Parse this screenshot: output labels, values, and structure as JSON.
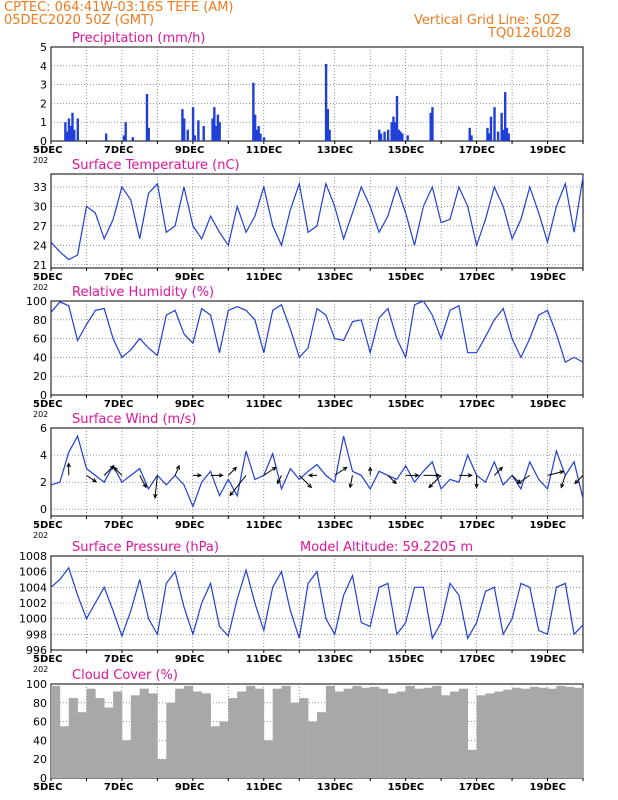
{
  "header": {
    "line1": "CPTEC:   064:41W-03:16S   TEFE (AM)",
    "line2": "05DEC2020 50Z (GMT)",
    "right1": "Vertical Grid Line: 50Z",
    "right2": "TQ0126L028",
    "color": "#ee7a1e"
  },
  "colors": {
    "title": "#e0149c",
    "line": "#1f3fd8",
    "bar": "#1f3fd8",
    "cloud": "#a8a8a8",
    "arrow": "#000000"
  },
  "date_ticks": [
    "5DEC",
    "7DEC",
    "9DEC",
    "11DEC",
    "13DEC",
    "15DEC",
    "17DEC",
    "19DEC"
  ],
  "year_stub": "202",
  "chart_data": [
    {
      "id": "precip",
      "type": "bar",
      "title": "Precipitation (mm/h)",
      "ylim": [
        0,
        5
      ],
      "yticks": [
        0,
        1,
        2,
        3,
        4,
        5
      ],
      "x": [
        5.4,
        5.45,
        5.5,
        5.55,
        5.6,
        5.65,
        5.75,
        6.55,
        7.05,
        7.1,
        7.3,
        7.7,
        7.75,
        8.7,
        8.75,
        8.85,
        9.0,
        9.05,
        9.15,
        9.3,
        9.55,
        9.6,
        9.65,
        9.7,
        9.75,
        10.7,
        10.75,
        10.8,
        10.85,
        10.9,
        11.0,
        12.75,
        12.8,
        12.85,
        14.25,
        14.3,
        14.4,
        14.5,
        14.6,
        14.65,
        14.7,
        14.75,
        14.8,
        14.85,
        14.9,
        15.05,
        15.7,
        15.75,
        16.8,
        16.85,
        17.3,
        17.35,
        17.4,
        17.5,
        17.6,
        17.7,
        17.75,
        17.8,
        17.85,
        17.9
      ],
      "values": [
        1.0,
        0.5,
        1.2,
        0.8,
        1.5,
        0.6,
        1.2,
        0.4,
        0.3,
        1.0,
        0.2,
        2.5,
        0.7,
        1.7,
        1.2,
        0.6,
        1.8,
        0.3,
        1.1,
        0.8,
        1.2,
        1.8,
        0.8,
        1.4,
        1.0,
        3.1,
        1.4,
        0.6,
        0.8,
        0.4,
        0.2,
        4.1,
        1.7,
        0.6,
        0.6,
        0.4,
        0.5,
        0.6,
        1.0,
        1.3,
        1.0,
        2.4,
        0.6,
        0.5,
        0.4,
        0.3,
        1.5,
        1.8,
        0.7,
        0.3,
        0.7,
        0.4,
        1.3,
        1.8,
        0.5,
        1.5,
        0.6,
        2.6,
        0.7,
        0.4
      ]
    },
    {
      "id": "temp",
      "type": "line",
      "title": "Surface Temperature (nC)",
      "ylim": [
        20.5,
        35
      ],
      "yticks": [
        21,
        24,
        27,
        30,
        33
      ],
      "x": [
        5.0,
        5.25,
        5.5,
        5.75,
        6.0,
        6.25,
        6.5,
        6.75,
        7.0,
        7.25,
        7.5,
        7.75,
        8.0,
        8.25,
        8.5,
        8.75,
        9.0,
        9.25,
        9.5,
        9.75,
        10.0,
        10.25,
        10.5,
        10.75,
        11.0,
        11.25,
        11.5,
        11.75,
        12.0,
        12.25,
        12.5,
        12.75,
        13.0,
        13.25,
        13.5,
        13.75,
        14.0,
        14.25,
        14.5,
        14.75,
        15.0,
        15.25,
        15.5,
        15.75,
        16.0,
        16.25,
        16.5,
        16.75,
        17.0,
        17.25,
        17.5,
        17.75,
        18.0,
        18.25,
        18.5,
        18.75,
        19.0,
        19.25,
        19.5,
        19.75,
        20.0
      ],
      "y": [
        24.5,
        23.0,
        21.8,
        22.5,
        30.0,
        29.0,
        25.0,
        28.0,
        33.0,
        31.0,
        25.0,
        32.0,
        33.5,
        26.0,
        27.0,
        33.0,
        27.0,
        25.0,
        28.5,
        26.0,
        24.0,
        30.0,
        26.0,
        28.5,
        33.0,
        27.0,
        24.0,
        29.5,
        33.5,
        26.0,
        27.0,
        33.5,
        30.0,
        25.0,
        29.0,
        33.0,
        30.0,
        26.0,
        28.5,
        33.0,
        29.0,
        24.0,
        30.0,
        33.0,
        27.5,
        28.0,
        33.0,
        30.0,
        24.0,
        28.0,
        33.0,
        30.0,
        25.0,
        28.0,
        33.0,
        29.0,
        24.5,
        30.0,
        33.5,
        26.0,
        34.5
      ]
    },
    {
      "id": "rh",
      "type": "line",
      "title": "Relative Humidity (%)",
      "ylim": [
        0,
        100
      ],
      "yticks": [
        0,
        20,
        40,
        60,
        80,
        100
      ],
      "x": [
        5.0,
        5.25,
        5.5,
        5.75,
        6.0,
        6.25,
        6.5,
        6.75,
        7.0,
        7.25,
        7.5,
        7.75,
        8.0,
        8.25,
        8.5,
        8.75,
        9.0,
        9.25,
        9.5,
        9.75,
        10.0,
        10.25,
        10.5,
        10.75,
        11.0,
        11.25,
        11.5,
        11.75,
        12.0,
        12.25,
        12.5,
        12.75,
        13.0,
        13.25,
        13.5,
        13.75,
        14.0,
        14.25,
        14.5,
        14.75,
        15.0,
        15.25,
        15.5,
        15.75,
        16.0,
        16.25,
        16.5,
        16.75,
        17.0,
        17.25,
        17.5,
        17.75,
        18.0,
        18.25,
        18.5,
        18.75,
        19.0,
        19.25,
        19.5,
        19.75,
        20.0
      ],
      "y": [
        88,
        99,
        95,
        58,
        75,
        90,
        92,
        60,
        40,
        48,
        60,
        50,
        42,
        85,
        90,
        65,
        55,
        92,
        85,
        45,
        90,
        94,
        90,
        80,
        45,
        90,
        96,
        70,
        40,
        50,
        92,
        85,
        60,
        58,
        78,
        80,
        45,
        82,
        92,
        60,
        40,
        96,
        100,
        85,
        60,
        90,
        95,
        45,
        45,
        62,
        80,
        92,
        60,
        40,
        60,
        85,
        90,
        65,
        35,
        40,
        35
      ]
    },
    {
      "id": "wind",
      "type": "line",
      "title": "Surface Wind (m/s)",
      "ylim": [
        -0.5,
        6
      ],
      "yticks": [
        0,
        2,
        4,
        6
      ],
      "x": [
        5.0,
        5.25,
        5.5,
        5.75,
        6.0,
        6.25,
        6.5,
        6.75,
        7.0,
        7.25,
        7.5,
        7.75,
        8.0,
        8.25,
        8.5,
        8.75,
        9.0,
        9.25,
        9.5,
        9.75,
        10.0,
        10.25,
        10.5,
        10.75,
        11.0,
        11.25,
        11.5,
        11.75,
        12.0,
        12.25,
        12.5,
        12.75,
        13.0,
        13.25,
        13.5,
        13.75,
        14.0,
        14.25,
        14.5,
        14.75,
        15.0,
        15.25,
        15.5,
        15.75,
        16.0,
        16.25,
        16.5,
        16.75,
        17.0,
        17.25,
        17.5,
        17.75,
        18.0,
        18.25,
        18.5,
        18.75,
        19.0,
        19.25,
        19.5,
        19.75,
        20.0
      ],
      "y": [
        1.8,
        2.0,
        4.2,
        5.4,
        3.0,
        2.5,
        2.0,
        3.2,
        2.0,
        2.5,
        3.0,
        1.5,
        2.5,
        1.8,
        2.5,
        1.8,
        0.2,
        2.0,
        2.8,
        1.0,
        2.2,
        1.0,
        4.3,
        2.2,
        2.5,
        4.1,
        1.5,
        3.0,
        2.2,
        2.8,
        3.3,
        2.5,
        2.0,
        5.4,
        2.8,
        2.5,
        1.5,
        2.8,
        2.5,
        2.2,
        3.2,
        2.0,
        2.8,
        3.5,
        1.5,
        2.2,
        2.0,
        4.0,
        2.5,
        2.0,
        3.5,
        1.8,
        2.5,
        1.5,
        3.5,
        2.2,
        1.5,
        4.3,
        2.5,
        3.5,
        0.8
      ],
      "arrows": {
        "x": [
          5.5,
          6.0,
          6.5,
          7.0,
          7.5,
          8.0,
          8.5,
          9.0,
          9.5,
          10.0,
          10.5,
          11.0,
          11.5,
          12.0,
          12.5,
          13.0,
          13.5,
          14.0,
          14.5,
          15.0,
          15.5,
          16.0,
          16.5,
          17.0,
          17.5,
          18.0,
          18.5,
          19.0,
          19.5,
          20.0
        ],
        "u": [
          0.0,
          1.2,
          1.2,
          -1.0,
          0.8,
          -0.3,
          0.5,
          1.0,
          1.5,
          1.0,
          -2.0,
          1.5,
          -0.5,
          1.5,
          -1.0,
          1.5,
          -0.3,
          0.0,
          1.0,
          1.6,
          2.0,
          -1.5,
          1.6,
          0.0,
          1.0,
          1.0,
          -1.5,
          2.0,
          -0.5,
          -1.0
        ],
        "v": [
          1.5,
          -0.8,
          1.2,
          1.0,
          -1.5,
          -2.8,
          1.2,
          0.0,
          0.0,
          1.0,
          -2.5,
          1.0,
          -1.0,
          -1.5,
          0.0,
          1.0,
          -1.5,
          1.0,
          -1.0,
          0.0,
          0.0,
          -1.5,
          0.0,
          -1.5,
          1.0,
          -1.0,
          -1.0,
          0.5,
          -1.5,
          -1.0
        ]
      }
    },
    {
      "id": "pres",
      "type": "line",
      "title": "Surface Pressure (hPa)",
      "subtitle": "Model Altitude: 59.2205 m",
      "ylim": [
        996,
        1008
      ],
      "yticks": [
        996,
        998,
        1000,
        1002,
        1004,
        1006,
        1008
      ],
      "x": [
        5.0,
        5.25,
        5.5,
        5.75,
        6.0,
        6.25,
        6.5,
        6.75,
        7.0,
        7.25,
        7.5,
        7.75,
        8.0,
        8.25,
        8.5,
        8.75,
        9.0,
        9.25,
        9.5,
        9.75,
        10.0,
        10.25,
        10.5,
        10.75,
        11.0,
        11.25,
        11.5,
        11.75,
        12.0,
        12.25,
        12.5,
        12.75,
        13.0,
        13.25,
        13.5,
        13.75,
        14.0,
        14.25,
        14.5,
        14.75,
        15.0,
        15.25,
        15.5,
        15.75,
        16.0,
        16.25,
        16.5,
        16.75,
        17.0,
        17.25,
        17.5,
        17.75,
        18.0,
        18.25,
        18.5,
        18.75,
        19.0,
        19.25,
        19.5,
        19.75,
        20.0
      ],
      "y": [
        1004.0,
        1005.0,
        1006.5,
        1003.0,
        1000.0,
        1002.0,
        1004.0,
        1001.0,
        997.8,
        1001.0,
        1005.0,
        1000.0,
        998.0,
        1004.5,
        1006.0,
        1001.5,
        998.0,
        1002.0,
        1004.5,
        999.0,
        997.8,
        1002.5,
        1006.2,
        1002.0,
        998.5,
        1004.0,
        1006.0,
        1001.0,
        997.5,
        1004.5,
        1006.0,
        1000.0,
        998.0,
        1003.0,
        1005.5,
        999.5,
        999.0,
        1004.0,
        1004.5,
        998.0,
        999.5,
        1004.0,
        1004.0,
        997.5,
        999.5,
        1004.5,
        1003.0,
        997.5,
        999.5,
        1003.5,
        1004.0,
        998.0,
        1000.0,
        1004.5,
        1004.0,
        998.5,
        998.0,
        1004.0,
        1004.5,
        998.0,
        999.2
      ]
    },
    {
      "id": "cloud",
      "type": "area",
      "title": "Cloud Cover (%)",
      "ylim": [
        0,
        100
      ],
      "yticks": [
        0,
        20,
        40,
        60,
        80,
        100
      ],
      "x": [
        5.0,
        5.25,
        5.5,
        5.75,
        6.0,
        6.25,
        6.5,
        6.75,
        7.0,
        7.25,
        7.5,
        7.75,
        8.0,
        8.25,
        8.5,
        8.75,
        9.0,
        9.25,
        9.5,
        9.75,
        10.0,
        10.25,
        10.5,
        10.75,
        11.0,
        11.25,
        11.5,
        11.75,
        12.0,
        12.25,
        12.5,
        12.75,
        13.0,
        13.25,
        13.5,
        13.75,
        14.0,
        14.25,
        14.5,
        14.75,
        15.0,
        15.25,
        15.5,
        15.75,
        16.0,
        16.25,
        16.5,
        16.75,
        17.0,
        17.25,
        17.5,
        17.75,
        18.0,
        18.25,
        18.5,
        18.75,
        19.0,
        19.25,
        19.5,
        19.75,
        20.0
      ],
      "y": [
        98,
        55,
        85,
        70,
        95,
        85,
        75,
        92,
        40,
        88,
        95,
        90,
        20,
        80,
        95,
        98,
        92,
        90,
        55,
        60,
        85,
        92,
        98,
        95,
        40,
        95,
        98,
        80,
        85,
        60,
        70,
        98,
        92,
        95,
        98,
        96,
        97,
        95,
        90,
        92,
        98,
        95,
        96,
        98,
        88,
        92,
        95,
        30,
        88,
        90,
        92,
        94,
        96,
        95,
        97,
        96,
        95,
        98,
        97,
        96,
        98
      ]
    }
  ]
}
